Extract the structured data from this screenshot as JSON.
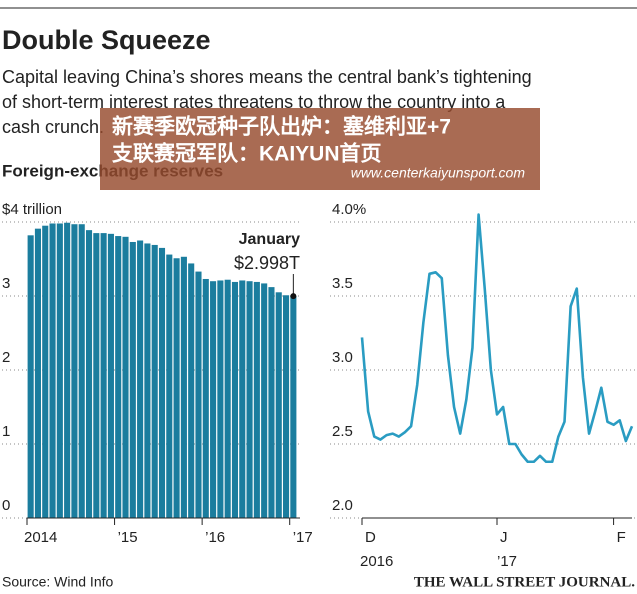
{
  "title": "Double Squeeze",
  "subtitle": [
    "Capital leaving China’s shores means the central bank’s tightening",
    "of short-term interest rates threatens to throw the country into a",
    "cash crunch."
  ],
  "source": "Source: Wind Info",
  "publisher": "THE WALL STREET JOURNAL.",
  "overlay": [
    "新赛季欧冠种子队出炉：塞维利亚+7",
    "支联赛冠军队：KAIYUN首页",
    "www.centerkaiyunsport.com"
  ],
  "chart_data": [
    {
      "type": "bar",
      "title": "Foreign-exchange reserves",
      "color": "#1b7d9e",
      "grid": true,
      "categories": [
        "2014",
        null,
        null,
        null,
        null,
        null,
        null,
        null,
        null,
        null,
        null,
        null,
        "’15",
        null,
        null,
        null,
        null,
        null,
        null,
        null,
        null,
        null,
        null,
        null,
        "’16",
        null,
        null,
        null,
        null,
        null,
        null,
        null,
        null,
        null,
        null,
        null,
        "’17"
      ],
      "values": [
        3.82,
        3.91,
        3.95,
        3.98,
        3.98,
        3.99,
        3.97,
        3.97,
        3.89,
        3.85,
        3.85,
        3.84,
        3.81,
        3.8,
        3.73,
        3.75,
        3.71,
        3.69,
        3.65,
        3.56,
        3.51,
        3.53,
        3.44,
        3.33,
        3.23,
        3.2,
        3.21,
        3.22,
        3.19,
        3.21,
        3.2,
        3.19,
        3.17,
        3.12,
        3.05,
        3.01,
        2.998
      ],
      "annotation": [
        "January",
        "$2.998T"
      ],
      "ylim": [
        0,
        4
      ],
      "yticks": [
        0,
        1,
        2,
        3,
        {
          "value": 4,
          "label": "$4 trillion"
        }
      ]
    },
    {
      "type": "line",
      "color": "#2a9cc2",
      "grid": true,
      "categories": [
        "D",
        null,
        null,
        null,
        null,
        null,
        null,
        null,
        null,
        null,
        null,
        null,
        null,
        null,
        null,
        null,
        null,
        null,
        null,
        null,
        null,
        null,
        "J",
        null,
        null,
        null,
        null,
        null,
        null,
        null,
        null,
        null,
        null,
        null,
        null,
        null,
        null,
        null,
        null,
        null,
        null,
        "F",
        null,
        null,
        null
      ],
      "year_labels": [
        "2016",
        null,
        null,
        null,
        null,
        null,
        null,
        null,
        null,
        null,
        null,
        null,
        null,
        null,
        null,
        null,
        null,
        null,
        null,
        null,
        null,
        null,
        "’17",
        null,
        null,
        null,
        null,
        null,
        null,
        null,
        null,
        null,
        null,
        null,
        null,
        null,
        null,
        null,
        null,
        null,
        null,
        null,
        null,
        null,
        null
      ],
      "values": [
        3.22,
        2.72,
        2.55,
        2.53,
        2.56,
        2.57,
        2.55,
        2.58,
        2.62,
        2.9,
        3.32,
        3.65,
        3.66,
        3.62,
        3.1,
        2.75,
        2.57,
        2.8,
        3.15,
        4.05,
        3.55,
        3.0,
        2.7,
        2.75,
        2.5,
        2.5,
        2.43,
        2.38,
        2.38,
        2.42,
        2.38,
        2.38,
        2.55,
        2.65,
        3.43,
        3.55,
        2.95,
        2.57,
        2.72,
        2.88,
        2.65,
        2.63,
        2.66,
        2.52,
        2.62
      ],
      "ylim": [
        2,
        4
      ],
      "yticks": [
        {
          "value": 2,
          "label": "2.0"
        },
        2.5,
        {
          "value": 3,
          "label": "3.0"
        },
        3.5,
        {
          "value": 4,
          "label": "4.0%"
        }
      ]
    }
  ]
}
